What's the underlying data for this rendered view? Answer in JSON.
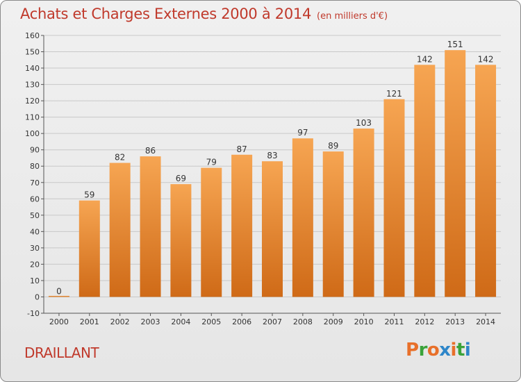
{
  "header": {
    "title": "Achats et Charges Externes 2000 à 2014",
    "subtitle": "(en milliers d'€)"
  },
  "footer": {
    "commune": "DRAILLANT",
    "logo_text": "Proxiti"
  },
  "colors": {
    "title": "#c0392b",
    "bar_top": "#f6a552",
    "bar_bottom": "#cf6a17",
    "logo_letters": [
      "#e8702a",
      "#3aa33a",
      "#e8702a",
      "#2e86c9",
      "#e8702a",
      "#3aa33a",
      "#2e86c9"
    ]
  },
  "chart_data": {
    "type": "bar",
    "categories": [
      "2000",
      "2001",
      "2002",
      "2003",
      "2004",
      "2005",
      "2006",
      "2007",
      "2008",
      "2009",
      "2010",
      "2011",
      "2012",
      "2013",
      "2014"
    ],
    "values": [
      0,
      59,
      82,
      86,
      69,
      79,
      87,
      83,
      97,
      89,
      103,
      121,
      142,
      151,
      142
    ],
    "data_labels": [
      "0",
      "59",
      "82",
      "86",
      "69",
      "79",
      "87",
      "83",
      "97",
      "89",
      "103",
      "121",
      "142",
      "151",
      "142"
    ],
    "y_ticks": [
      -10,
      0,
      10,
      20,
      30,
      40,
      50,
      60,
      70,
      80,
      90,
      100,
      110,
      120,
      130,
      140,
      150,
      160
    ],
    "ylim": [
      -10,
      160
    ],
    "grid": true,
    "title": "Achats et Charges Externes 2000 à 2014",
    "xlabel": "",
    "ylabel": ""
  }
}
